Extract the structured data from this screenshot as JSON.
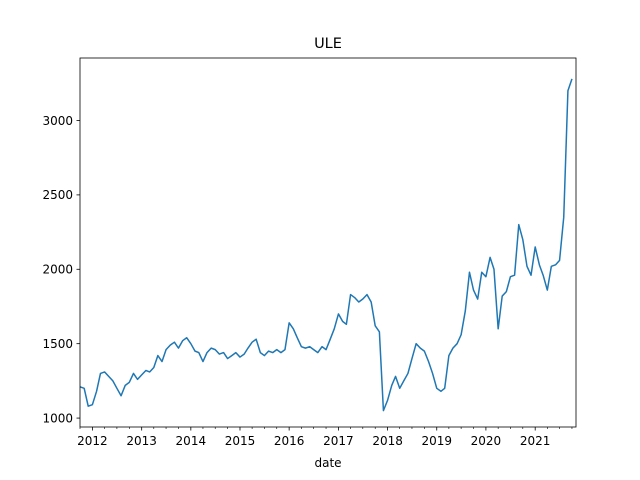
{
  "chart_data": {
    "type": "line",
    "title": "ULE",
    "xlabel": "date",
    "ylabel": "",
    "xlim": [
      "2011-10-01",
      "2021-10-31"
    ],
    "ylim": [
      940,
      3420
    ],
    "x_ticks": [
      "2012",
      "2013",
      "2014",
      "2015",
      "2016",
      "2017",
      "2018",
      "2019",
      "2020",
      "2021"
    ],
    "y_ticks": [
      1000,
      1500,
      2000,
      2500,
      3000
    ],
    "grid": false,
    "legend": "none",
    "line_color": "#1f77b4",
    "series": [
      {
        "x": [
          "2011-10-01",
          "2011-11-01",
          "2011-12-01",
          "2012-01-01",
          "2012-02-01",
          "2012-03-01",
          "2012-04-01",
          "2012-05-01",
          "2012-06-01",
          "2012-07-01",
          "2012-08-01",
          "2012-09-01",
          "2012-10-01",
          "2012-11-01",
          "2012-12-01",
          "2013-01-01",
          "2013-02-01",
          "2013-03-01",
          "2013-04-01",
          "2013-05-01",
          "2013-06-01",
          "2013-07-01",
          "2013-08-01",
          "2013-09-01",
          "2013-10-01",
          "2013-11-01",
          "2013-12-01",
          "2014-01-01",
          "2014-02-01",
          "2014-03-01",
          "2014-04-01",
          "2014-05-01",
          "2014-06-01",
          "2014-07-01",
          "2014-08-01",
          "2014-09-01",
          "2014-10-01",
          "2014-11-01",
          "2014-12-01",
          "2015-01-01",
          "2015-02-01",
          "2015-03-01",
          "2015-04-01",
          "2015-05-01",
          "2015-06-01",
          "2015-07-01",
          "2015-08-01",
          "2015-09-01",
          "2015-10-01",
          "2015-11-01",
          "2015-12-01",
          "2016-01-01",
          "2016-02-01",
          "2016-03-01",
          "2016-04-01",
          "2016-05-01",
          "2016-06-01",
          "2016-07-01",
          "2016-08-01",
          "2016-09-01",
          "2016-10-01",
          "2016-11-01",
          "2016-12-01",
          "2017-01-01",
          "2017-02-01",
          "2017-03-01",
          "2017-04-01",
          "2017-05-01",
          "2017-06-01",
          "2017-07-01",
          "2017-08-01",
          "2017-09-01",
          "2017-10-01",
          "2017-11-01",
          "2017-12-01",
          "2018-01-01",
          "2018-02-01",
          "2018-03-01",
          "2018-04-01",
          "2018-05-01",
          "2018-06-01",
          "2018-07-01",
          "2018-08-01",
          "2018-09-01",
          "2018-10-01",
          "2018-11-01",
          "2018-12-01",
          "2019-01-01",
          "2019-02-01",
          "2019-03-01",
          "2019-04-01",
          "2019-05-01",
          "2019-06-01",
          "2019-07-01",
          "2019-08-01",
          "2019-09-01",
          "2019-10-01",
          "2019-11-01",
          "2019-12-01",
          "2020-01-01",
          "2020-02-01",
          "2020-03-01",
          "2020-04-01",
          "2020-05-01",
          "2020-06-01",
          "2020-07-01",
          "2020-08-01",
          "2020-09-01",
          "2020-10-01",
          "2020-11-01",
          "2020-12-01",
          "2021-01-01",
          "2021-02-01",
          "2021-03-01",
          "2021-04-01",
          "2021-05-01",
          "2021-06-01",
          "2021-07-01",
          "2021-08-01",
          "2021-09-01",
          "2021-10-01"
        ],
        "values": [
          1210,
          1200,
          1080,
          1090,
          1180,
          1300,
          1310,
          1280,
          1250,
          1200,
          1150,
          1220,
          1240,
          1300,
          1260,
          1290,
          1320,
          1310,
          1340,
          1420,
          1380,
          1460,
          1490,
          1510,
          1470,
          1520,
          1540,
          1500,
          1450,
          1440,
          1380,
          1440,
          1470,
          1460,
          1430,
          1440,
          1400,
          1420,
          1440,
          1410,
          1430,
          1470,
          1510,
          1530,
          1440,
          1420,
          1450,
          1440,
          1460,
          1440,
          1460,
          1640,
          1600,
          1540,
          1480,
          1470,
          1480,
          1460,
          1440,
          1480,
          1460,
          1530,
          1600,
          1700,
          1650,
          1630,
          1830,
          1810,
          1780,
          1800,
          1830,
          1780,
          1620,
          1580,
          1050,
          1120,
          1220,
          1280,
          1200,
          1250,
          1300,
          1400,
          1500,
          1470,
          1450,
          1380,
          1300,
          1200,
          1180,
          1200,
          1420,
          1470,
          1500,
          1560,
          1720,
          1980,
          1860,
          1800,
          1980,
          1950,
          2080,
          2000,
          1600,
          1820,
          1850,
          1950,
          1960,
          2300,
          2200,
          2020,
          1960,
          2150,
          2030,
          1960,
          1860,
          2020,
          2030,
          2060,
          2350,
          3200,
          3280
        ]
      }
    ]
  }
}
